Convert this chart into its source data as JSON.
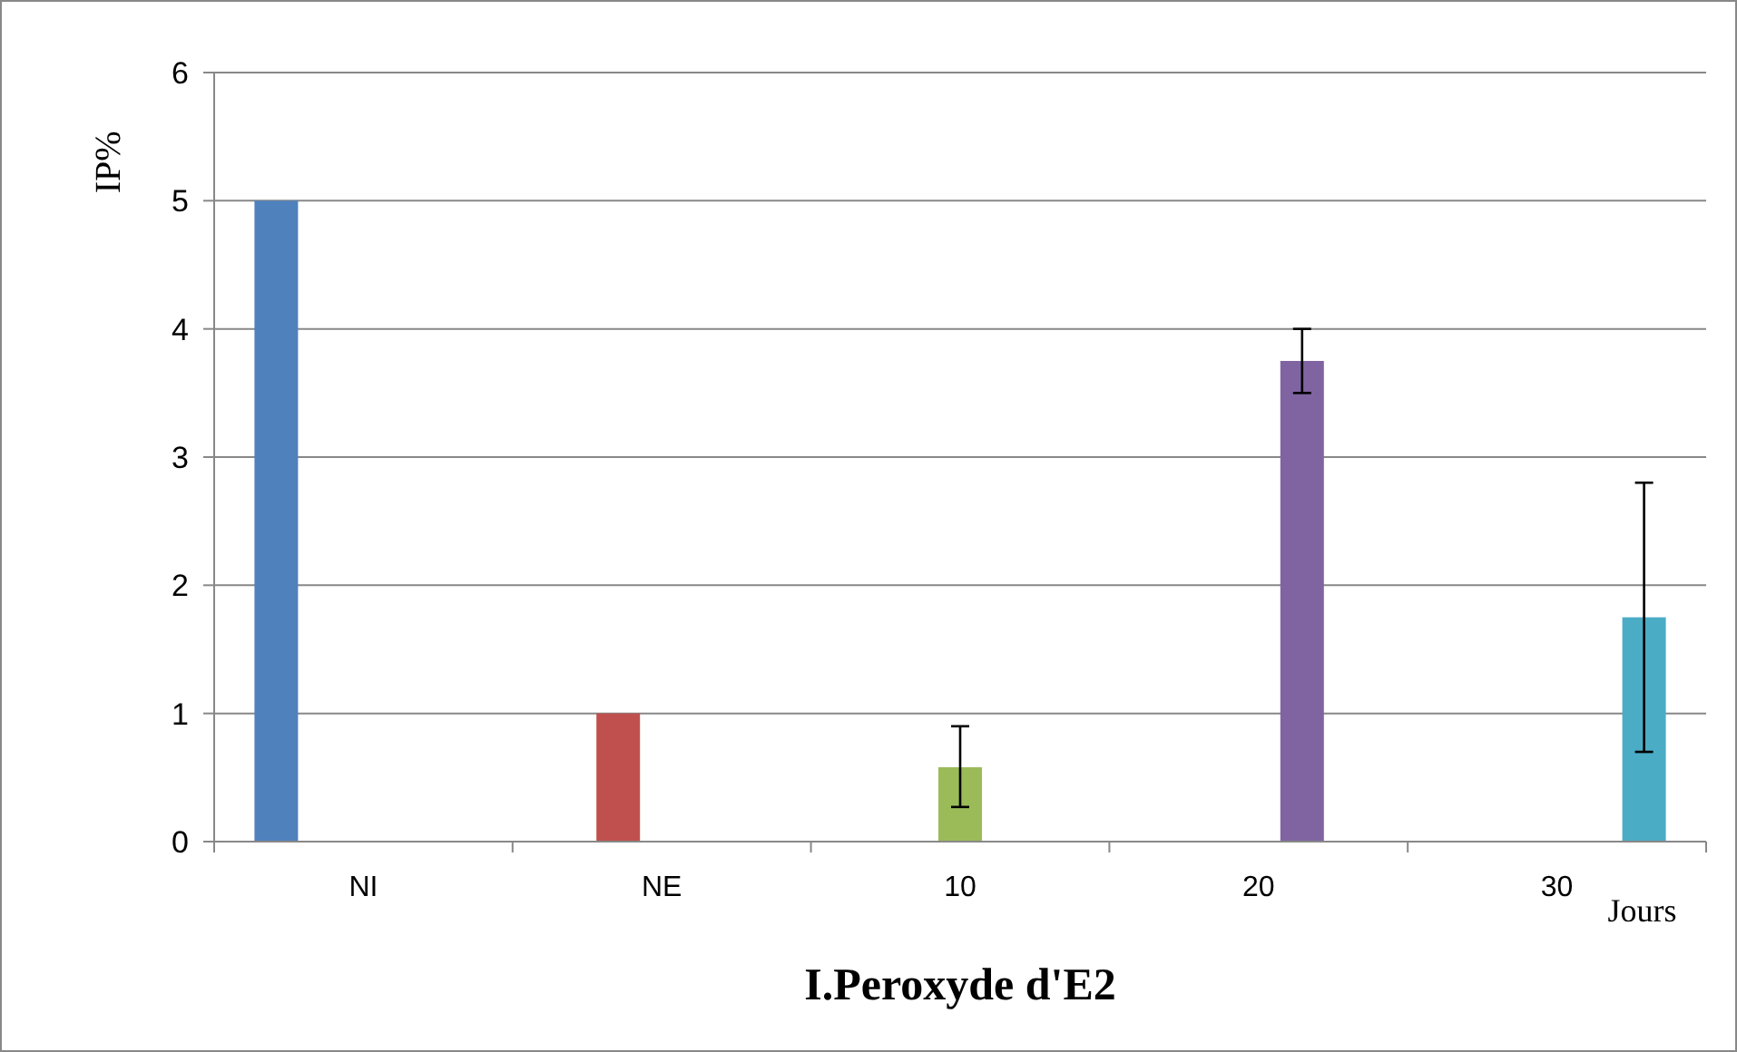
{
  "chart_data": {
    "type": "bar",
    "xlabel": "I.Peroxyde d'E2",
    "ylabel": "IP%",
    "categories": [
      "NI",
      "NE",
      "10",
      "20",
      "30"
    ],
    "series": [
      {
        "color": "#4f81bd",
        "values": [
          5,
          null,
          null,
          null,
          null
        ],
        "errors": [
          null,
          null,
          null,
          null,
          null
        ]
      },
      {
        "color": "#c0504d",
        "values": [
          null,
          1,
          null,
          null,
          null
        ],
        "errors": [
          null,
          null,
          null,
          null,
          null
        ]
      },
      {
        "color": "#9bbb59",
        "values": [
          null,
          null,
          0.58,
          null,
          null
        ],
        "errors": [
          null,
          null,
          [
            0.27,
            0.9
          ],
          null,
          null
        ]
      },
      {
        "color": "#8064a2",
        "values": [
          null,
          null,
          null,
          3.75,
          null
        ],
        "errors": [
          null,
          null,
          null,
          [
            3.5,
            4.0
          ],
          null
        ]
      },
      {
        "color": "#4bacc6",
        "values": [
          null,
          null,
          null,
          null,
          1.75
        ],
        "errors": [
          null,
          null,
          null,
          null,
          [
            0.7,
            2.8
          ]
        ]
      }
    ],
    "ylim": [
      0,
      6
    ],
    "yticks": [
      0,
      1,
      2,
      3,
      4,
      5,
      6
    ],
    "grid": "y",
    "annotations": [
      "Jours"
    ]
  }
}
